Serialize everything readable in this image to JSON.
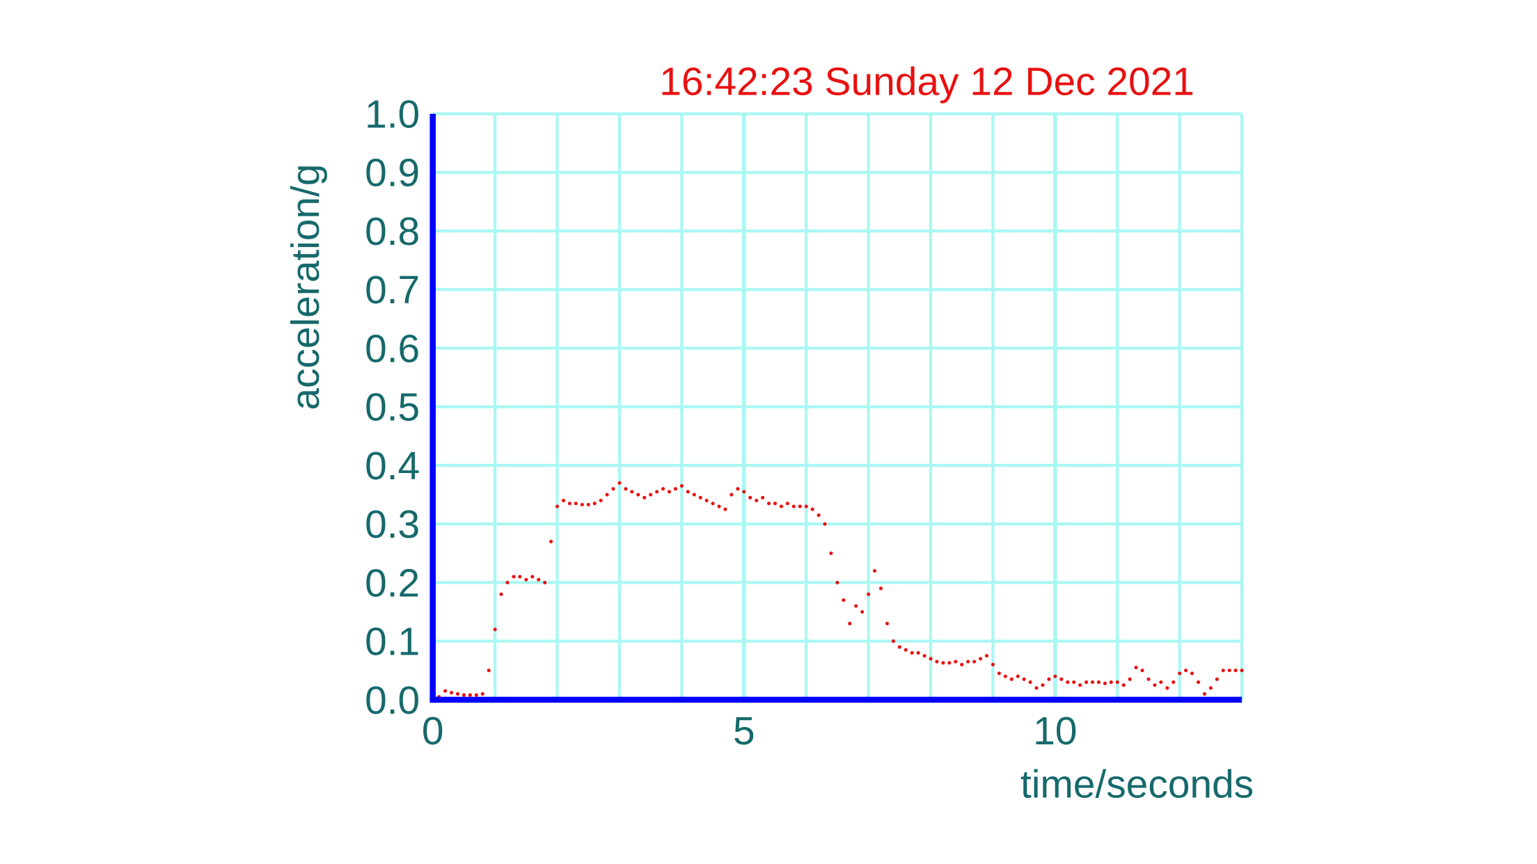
{
  "chart_data": {
    "type": "scatter",
    "title": "16:42:23 Sunday 12 Dec 2021",
    "xlabel": "time/seconds",
    "ylabel": "acceleration/g",
    "color": "#e81010",
    "grid": true,
    "xlim": [
      0,
      13
    ],
    "ylim": [
      0,
      1
    ],
    "xticks": [
      0,
      5,
      10
    ],
    "xminorticks": [
      1,
      2,
      3,
      4,
      6,
      7,
      8,
      9,
      11,
      12,
      13
    ],
    "yticks": [
      {
        "value": 0,
        "label": "0.0"
      },
      0.1,
      0.2,
      0.3,
      0.4,
      0.5,
      0.6,
      0.7,
      0.8,
      0.9,
      {
        "value": 1,
        "label": "1.0"
      }
    ],
    "x": [
      0,
      0.1,
      0.2,
      0.3,
      0.4,
      0.5,
      0.6,
      0.7,
      0.8,
      0.9,
      1.0,
      1.1,
      1.2,
      1.3,
      1.4,
      1.5,
      1.6,
      1.7,
      1.8,
      1.9,
      2.0,
      2.1,
      2.2,
      2.3,
      2.4,
      2.5,
      2.6,
      2.7,
      2.8,
      2.9,
      3.0,
      3.1,
      3.2,
      3.3,
      3.4,
      3.5,
      3.6,
      3.7,
      3.8,
      3.9,
      4.0,
      4.1,
      4.2,
      4.3,
      4.4,
      4.5,
      4.6,
      4.7,
      4.8,
      4.9,
      5.0,
      5.1,
      5.2,
      5.3,
      5.4,
      5.5,
      5.6,
      5.7,
      5.8,
      5.9,
      6.0,
      6.1,
      6.2,
      6.3,
      6.4,
      6.5,
      6.6,
      6.7,
      6.8,
      6.9,
      7.0,
      7.1,
      7.2,
      7.3,
      7.4,
      7.5,
      7.6,
      7.7,
      7.8,
      7.9,
      8.0,
      8.1,
      8.2,
      8.3,
      8.4,
      8.5,
      8.6,
      8.7,
      8.8,
      8.9,
      9.0,
      9.1,
      9.2,
      9.3,
      9.4,
      9.5,
      9.6,
      9.7,
      9.8,
      9.9,
      10.0,
      10.1,
      10.2,
      10.3,
      10.4,
      10.5,
      10.6,
      10.7,
      10.8,
      10.9,
      11.0,
      11.1,
      11.2,
      11.3,
      11.4,
      11.5,
      11.6,
      11.7,
      11.8,
      11.9,
      12.0,
      12.1,
      12.2,
      12.3,
      12.4,
      12.5,
      12.6,
      12.7,
      12.8,
      12.9,
      13.0
    ],
    "values": [
      0.01,
      0.005,
      0.015,
      0.012,
      0.01,
      0.008,
      0.008,
      0.008,
      0.01,
      0.05,
      0.12,
      0.18,
      0.2,
      0.21,
      0.21,
      0.205,
      0.21,
      0.205,
      0.2,
      0.27,
      0.33,
      0.34,
      0.335,
      0.335,
      0.333,
      0.333,
      0.335,
      0.34,
      0.35,
      0.36,
      0.37,
      0.36,
      0.355,
      0.35,
      0.345,
      0.35,
      0.355,
      0.36,
      0.355,
      0.36,
      0.365,
      0.355,
      0.35,
      0.345,
      0.34,
      0.335,
      0.33,
      0.325,
      0.35,
      0.36,
      0.355,
      0.345,
      0.34,
      0.345,
      0.335,
      0.335,
      0.33,
      0.335,
      0.33,
      0.33,
      0.33,
      0.325,
      0.315,
      0.3,
      0.25,
      0.2,
      0.17,
      0.13,
      0.16,
      0.15,
      0.18,
      0.22,
      0.19,
      0.13,
      0.1,
      0.09,
      0.085,
      0.08,
      0.08,
      0.075,
      0.07,
      0.065,
      0.063,
      0.063,
      0.065,
      0.06,
      0.065,
      0.065,
      0.07,
      0.075,
      0.06,
      0.045,
      0.04,
      0.035,
      0.04,
      0.035,
      0.03,
      0.02,
      0.025,
      0.035,
      0.04,
      0.035,
      0.03,
      0.03,
      0.025,
      0.03,
      0.03,
      0.03,
      0.028,
      0.03,
      0.03,
      0.025,
      0.035,
      0.055,
      0.05,
      0.035,
      0.025,
      0.03,
      0.02,
      0.03,
      0.045,
      0.05,
      0.045,
      0.03,
      0.01,
      0.02,
      0.035,
      0.05,
      0.05,
      0.05,
      0.05
    ]
  }
}
